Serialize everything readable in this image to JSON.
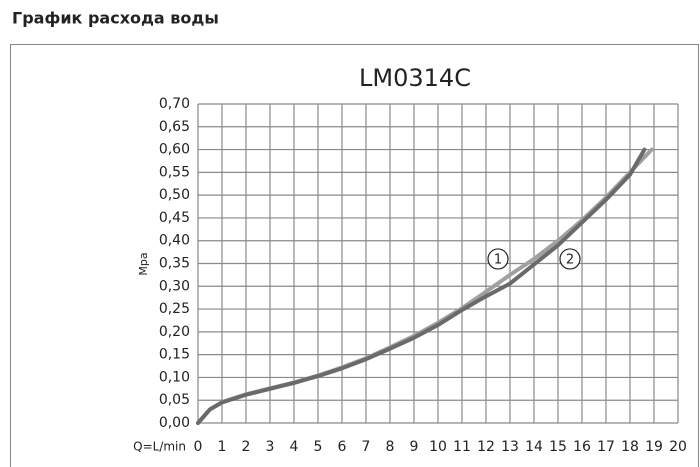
{
  "header": {
    "title": "График расхода воды"
  },
  "chart_data": {
    "type": "line",
    "title": "LM0314C",
    "x_label": "Q=L/min",
    "y_label": "Mpa",
    "xlim": [
      0,
      20
    ],
    "xticks": [
      0,
      1,
      2,
      3,
      4,
      5,
      6,
      7,
      8,
      9,
      10,
      11,
      12,
      13,
      14,
      15,
      16,
      17,
      18,
      19,
      20
    ],
    "ylim": [
      0,
      0.7
    ],
    "yticks": [
      {
        "value": 0,
        "label": "0,00"
      },
      {
        "value": 0.05,
        "label": "0,05"
      },
      {
        "value": 0.1,
        "label": "0,10"
      },
      {
        "value": 0.15,
        "label": "0,15"
      },
      {
        "value": 0.2,
        "label": "0,20"
      },
      {
        "value": 0.25,
        "label": "0,25"
      },
      {
        "value": 0.3,
        "label": "0,30"
      },
      {
        "value": 0.35,
        "label": "0,35"
      },
      {
        "value": 0.4,
        "label": "0,40"
      },
      {
        "value": 0.45,
        "label": "0,45"
      },
      {
        "value": 0.5,
        "label": "0,50"
      },
      {
        "value": 0.55,
        "label": "0,55"
      },
      {
        "value": 0.6,
        "label": "0,60"
      },
      {
        "value": 0.65,
        "label": "0,65"
      },
      {
        "value": 0.7,
        "label": "0,70"
      }
    ],
    "grid": true,
    "series": [
      {
        "name": "1",
        "color": "#a0a0a0",
        "x": [
          0,
          0.5,
          1,
          2,
          3,
          4,
          5,
          6,
          7,
          8,
          9,
          10,
          11,
          12,
          13,
          14,
          15,
          16,
          17,
          18,
          18.9
        ],
        "values": [
          0,
          0.03,
          0.046,
          0.063,
          0.076,
          0.089,
          0.104,
          0.122,
          0.142,
          0.166,
          0.191,
          0.22,
          0.252,
          0.288,
          0.325,
          0.36,
          0.4,
          0.445,
          0.495,
          0.55,
          0.6
        ]
      },
      {
        "name": "2",
        "color": "#6a6a6a",
        "x": [
          0,
          0.5,
          1,
          2,
          3,
          4,
          5,
          6,
          7,
          8,
          9,
          10,
          11,
          12,
          13,
          14,
          15,
          16,
          17,
          18,
          18.6
        ],
        "values": [
          0,
          0.03,
          0.045,
          0.062,
          0.075,
          0.088,
          0.103,
          0.12,
          0.14,
          0.163,
          0.187,
          0.215,
          0.248,
          0.278,
          0.306,
          0.348,
          0.39,
          0.44,
          0.49,
          0.545,
          0.6
        ]
      }
    ],
    "label_pos": [
      [
        12.5,
        0.36
      ],
      [
        15.5,
        0.36
      ]
    ]
  }
}
